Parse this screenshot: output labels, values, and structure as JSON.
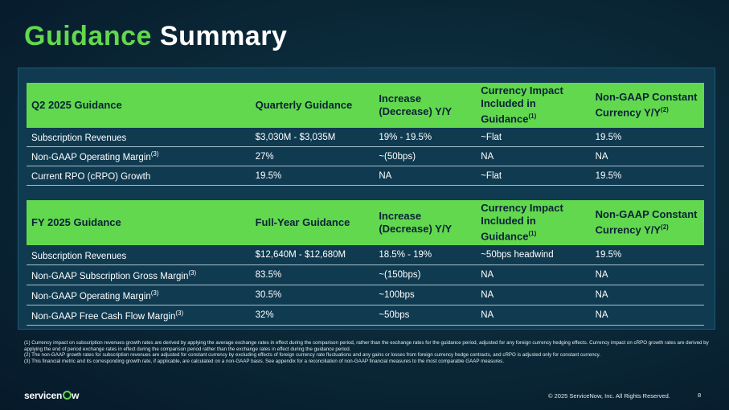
{
  "title": {
    "part1": "Guidance",
    "part2": "Summary"
  },
  "q2": {
    "headers": [
      {
        "text": "Q2 2025 Guidance",
        "sup": ""
      },
      {
        "text": "Quarterly Guidance",
        "sup": ""
      },
      {
        "text": "Increase (Decrease) Y/Y",
        "sup": ""
      },
      {
        "text": "Currency Impact Included in Guidance",
        "sup": "(1)"
      },
      {
        "text": "Non-GAAP Constant Currency Y/Y",
        "sup": "(2)"
      }
    ],
    "rows": [
      {
        "label": "Subscription Revenues",
        "sup": "",
        "guidance": "$3,030M - $3,035M",
        "change": "19% - 19.5%",
        "currency": "~Flat",
        "constant": "19.5%"
      },
      {
        "label": "Non-GAAP Operating Margin",
        "sup": "(3)",
        "guidance": "27%",
        "change": "~(50bps)",
        "currency": "NA",
        "constant": "NA"
      },
      {
        "label": "Current RPO (cRPO) Growth",
        "sup": "",
        "guidance": "19.5%",
        "change": "NA",
        "currency": "~Flat",
        "constant": "19.5%"
      }
    ]
  },
  "fy": {
    "headers": [
      {
        "text": "FY 2025 Guidance",
        "sup": ""
      },
      {
        "text": "Full-Year Guidance",
        "sup": ""
      },
      {
        "text": "Increase (Decrease) Y/Y",
        "sup": ""
      },
      {
        "text": "Currency Impact Included in Guidance",
        "sup": "(1)"
      },
      {
        "text": "Non-GAAP Constant Currency Y/Y",
        "sup": "(2)"
      }
    ],
    "rows": [
      {
        "label": "Subscription Revenues",
        "sup": "",
        "guidance": "$12,640M - $12,680M",
        "change": "18.5% - 19%",
        "currency": "~50bps headwind",
        "constant": "19.5%"
      },
      {
        "label": "Non-GAAP Subscription Gross Margin",
        "sup": "(3)",
        "guidance": "83.5%",
        "change": "~(150bps)",
        "currency": "NA",
        "constant": "NA"
      },
      {
        "label": "Non-GAAP Operating Margin",
        "sup": "(3)",
        "guidance": "30.5%",
        "change": "~100bps",
        "currency": "NA",
        "constant": "NA"
      },
      {
        "label": "Non-GAAP Free Cash Flow Margin",
        "sup": "(3)",
        "guidance": "32%",
        "change": "~50bps",
        "currency": "NA",
        "constant": "NA"
      }
    ]
  },
  "footnotes": [
    "(1) Currency impact on subscription revenues growth rates are derived by applying the average exchange rates in effect during the comparison period, rather than the exchange rates for the guidance period, adjusted for any foreign currency hedging effects. Currency impact on cRPO growth rates are derived by applying the end of period exchange rates in effect during the comparison period rather than the exchange rates in effect during the guidance period.",
    "(2) The non-GAAP growth rates for subscription revenues are adjusted for constant currency by excluding effects of foreign currency rate fluctuations and any gains or losses from foreign currency hedge contracts, and cRPO is adjusted only for constant currency.",
    "(3) This financial metric and its corresponding growth rate, if applicable, are calculated on a non-GAAP basis. See appendix for a reconciliation of non-GAAP financial measures to the most comparable GAAP measures."
  ],
  "footer": {
    "logo_a": "servicen",
    "logo_b": "w",
    "copyright": "© 2025 ServiceNow, Inc. All Rights Reserved.",
    "page": "8"
  },
  "colors": {
    "accent_green": "#62d84e",
    "background": "#0b2a39",
    "panel": "#0f3a50"
  }
}
